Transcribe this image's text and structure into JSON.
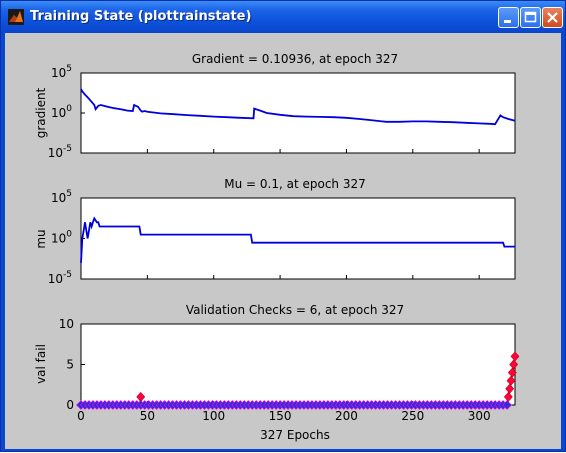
{
  "window": {
    "title": "Training State (plottrainstate)",
    "buttons": [
      "minimize",
      "maximize",
      "close"
    ]
  },
  "colors": {
    "line": "#0000dd",
    "marker_fill": "#3030d0",
    "marker_edge": "#ff00ff",
    "fail_marker": "#ff0040",
    "plot_bg": "#ffffff",
    "figure_bg": "#c8c8c8"
  },
  "chart_data": [
    {
      "type": "line",
      "title": "Gradient = 0.10936, at epoch 327",
      "ylabel": "gradient",
      "xlabel": "",
      "xlim": [
        0,
        327
      ],
      "y_scale": "log",
      "ylim": [
        1e-05,
        100000
      ],
      "yticks": [
        {
          "exp": "-5"
        },
        {
          "exp": "0"
        },
        {
          "exp": "5"
        }
      ],
      "series": [
        {
          "x": [
            0,
            1,
            3,
            6,
            8,
            10,
            11,
            13,
            15,
            20,
            25,
            30,
            35,
            39,
            40,
            43,
            45,
            46,
            48,
            50,
            60,
            70,
            80,
            90,
            100,
            110,
            120,
            130,
            130.5,
            135,
            140,
            150,
            160,
            170,
            180,
            190,
            200,
            210,
            220,
            230,
            240,
            250,
            260,
            270,
            280,
            290,
            300,
            308,
            312,
            316,
            318,
            322,
            327
          ],
          "y": [
            1000,
            500,
            200,
            60,
            25,
            10,
            3,
            8,
            10,
            6,
            4,
            3,
            2,
            1.8,
            10,
            6,
            2,
            1.5,
            1.8,
            1.4,
            0.9,
            0.7,
            0.55,
            0.45,
            0.35,
            0.3,
            0.25,
            0.22,
            3.5,
            2.0,
            1.0,
            0.6,
            0.4,
            0.35,
            0.33,
            0.3,
            0.25,
            0.18,
            0.12,
            0.08,
            0.08,
            0.09,
            0.09,
            0.08,
            0.07,
            0.06,
            0.05,
            0.045,
            0.04,
            0.5,
            0.3,
            0.18,
            0.10936
          ]
        }
      ]
    },
    {
      "type": "line",
      "title": "Mu = 0.1, at epoch 327",
      "ylabel": "mu",
      "xlabel": "",
      "xlim": [
        0,
        327
      ],
      "y_scale": "log",
      "ylim": [
        1e-05,
        100000
      ],
      "yticks": [
        {
          "exp": "-5"
        },
        {
          "exp": "0"
        },
        {
          "exp": "5"
        }
      ],
      "series": [
        {
          "x": [
            0,
            1,
            2,
            3,
            4,
            5,
            6,
            7,
            8,
            9,
            10,
            12,
            13,
            14,
            15,
            44,
            45,
            128,
            129,
            318,
            319,
            327
          ],
          "y": [
            0.001,
            1,
            10,
            100,
            10,
            1,
            10,
            100,
            30,
            100,
            300,
            100,
            100,
            30,
            30,
            30,
            3,
            3,
            0.3,
            0.3,
            0.1,
            0.1
          ]
        }
      ]
    },
    {
      "type": "scatter",
      "title": "Validation Checks = 6, at epoch 327",
      "ylabel": "val fail",
      "xlabel": "327 Epochs",
      "xlim": [
        0,
        327
      ],
      "xticks": [
        0,
        50,
        100,
        150,
        200,
        250,
        300
      ],
      "ylim": [
        0,
        10
      ],
      "yticks": [
        0,
        5,
        10
      ],
      "zero_run": {
        "from": 0,
        "to": 321,
        "step": 3
      },
      "points": [
        {
          "x": 45,
          "y": 1
        },
        {
          "x": 322,
          "y": 1
        },
        {
          "x": 323,
          "y": 2
        },
        {
          "x": 324,
          "y": 3
        },
        {
          "x": 325,
          "y": 4
        },
        {
          "x": 326,
          "y": 5
        },
        {
          "x": 327,
          "y": 6
        }
      ]
    }
  ]
}
